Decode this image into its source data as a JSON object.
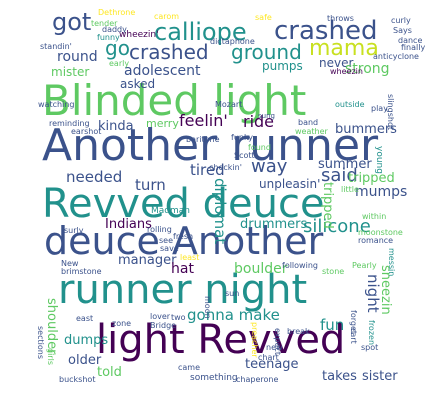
{
  "palette": {
    "purple": "#440154",
    "blue": "#3b528b",
    "teal": "#21918c",
    "green": "#5ec962",
    "yellow": "#fde725"
  },
  "words": [
    {
      "text": "Blinded light",
      "color": "#5ec962"
    },
    {
      "text": "Another runner",
      "color": "#3b528b"
    },
    {
      "text": "Revved deuce",
      "color": "#21918c"
    },
    {
      "text": "deuce Another",
      "color": "#3b528b"
    },
    {
      "text": "runner night",
      "color": "#21918c"
    },
    {
      "text": "light Revved",
      "color": "#440154"
    },
    {
      "text": "calliope",
      "color": "#21918c"
    },
    {
      "text": "crashed",
      "color": "#3b528b"
    },
    {
      "text": "got",
      "color": "#3b528b"
    },
    {
      "text": "go",
      "color": "#21918c"
    },
    {
      "text": "crashed",
      "color": "#3b528b"
    },
    {
      "text": "ground",
      "color": "#21918c"
    },
    {
      "text": "mama",
      "color": "#c8e020"
    },
    {
      "text": "pumps",
      "color": "#21918c"
    },
    {
      "text": "never",
      "color": "#3b528b"
    },
    {
      "text": "strong",
      "color": "#5ec962"
    },
    {
      "text": "round",
      "color": "#3b528b"
    },
    {
      "text": "mister",
      "color": "#5ec962"
    },
    {
      "text": "adolescent",
      "color": "#3b528b"
    },
    {
      "text": "asked",
      "color": "#3b528b"
    },
    {
      "text": "kinda",
      "color": "#3b528b"
    },
    {
      "text": "merry",
      "color": "#5ec962"
    },
    {
      "text": "feelin'",
      "color": "#440154"
    },
    {
      "text": "ride",
      "color": "#440154"
    },
    {
      "text": "bummers",
      "color": "#3b528b"
    },
    {
      "text": "way",
      "color": "#3b528b"
    },
    {
      "text": "summer",
      "color": "#3b528b"
    },
    {
      "text": "said",
      "color": "#3b528b"
    },
    {
      "text": "tripped",
      "color": "#5ec962"
    },
    {
      "text": "mumps",
      "color": "#3b528b"
    },
    {
      "text": "tired",
      "color": "#3b528b"
    },
    {
      "text": "needed",
      "color": "#3b528b"
    },
    {
      "text": "turn",
      "color": "#3b528b"
    },
    {
      "text": "diplomat",
      "color": "#21918c"
    },
    {
      "text": "unpleasin'",
      "color": "#3b528b"
    },
    {
      "text": "Indians",
      "color": "#440154"
    },
    {
      "text": "drummers",
      "color": "#21918c"
    },
    {
      "text": "silicone",
      "color": "#21918c"
    },
    {
      "text": "manager",
      "color": "#3b528b"
    },
    {
      "text": "hat",
      "color": "#440154"
    },
    {
      "text": "boulder",
      "color": "#5ec962"
    },
    {
      "text": "gonna make",
      "color": "#21918c"
    },
    {
      "text": "fun",
      "color": "#21918c"
    },
    {
      "text": "tripped",
      "color": "#5ec962"
    },
    {
      "text": "shoulder",
      "color": "#5ec962"
    },
    {
      "text": "dumps",
      "color": "#21918c"
    },
    {
      "text": "older",
      "color": "#3b528b"
    },
    {
      "text": "told",
      "color": "#5ec962"
    },
    {
      "text": "teenage",
      "color": "#3b528b"
    },
    {
      "text": "takes",
      "color": "#3b528b"
    },
    {
      "text": "sister",
      "color": "#3b528b"
    },
    {
      "text": "night",
      "color": "#3b528b"
    },
    {
      "text": "sneezin",
      "color": "#5ec962"
    },
    {
      "text": "something",
      "color": "#3b528b"
    },
    {
      "text": "Madman",
      "color": "#21918c"
    },
    {
      "text": "checkin'",
      "color": "#3b528b"
    },
    {
      "text": "Scott",
      "color": "#3b528b"
    },
    {
      "text": "spot",
      "color": "#3b528b"
    },
    {
      "text": "Dethrone",
      "color": "#fde725"
    },
    {
      "text": "tender",
      "color": "#5ec962"
    },
    {
      "text": "daddy",
      "color": "#3b528b"
    },
    {
      "text": "funny",
      "color": "#21918c"
    },
    {
      "text": "standin'",
      "color": "#3b528b"
    },
    {
      "text": "early",
      "color": "#5ec962"
    },
    {
      "text": "wheezin'",
      "color": "#440154"
    },
    {
      "text": "dictaphone",
      "color": "#3b528b"
    },
    {
      "text": "carom",
      "color": "#fde725"
    },
    {
      "text": "safe",
      "color": "#fde725"
    },
    {
      "text": "throws",
      "color": "#3b528b"
    },
    {
      "text": "curly",
      "color": "#3b528b"
    },
    {
      "text": "Says",
      "color": "#3b528b"
    },
    {
      "text": "dance",
      "color": "#3b528b"
    },
    {
      "text": "finally",
      "color": "#3b528b"
    },
    {
      "text": "anticyclone",
      "color": "#3b528b"
    },
    {
      "text": "wheezin",
      "color": "#440154"
    },
    {
      "text": "Mozart",
      "color": "#3b528b"
    },
    {
      "text": "outside",
      "color": "#21918c"
    },
    {
      "text": "play",
      "color": "#3b528b"
    },
    {
      "text": "sung",
      "color": "#3b528b"
    },
    {
      "text": "reminding",
      "color": "#3b528b"
    },
    {
      "text": "earshot",
      "color": "#3b528b"
    },
    {
      "text": "baritone",
      "color": "#3b528b"
    },
    {
      "text": "band",
      "color": "#3b528b"
    },
    {
      "text": "weather",
      "color": "#5ec962"
    },
    {
      "text": "funky",
      "color": "#3b528b"
    },
    {
      "text": "young",
      "color": "#21918c"
    },
    {
      "text": "little",
      "color": "#5ec962"
    },
    {
      "text": "romance",
      "color": "#3b528b"
    },
    {
      "text": "moonstone",
      "color": "#5ec962"
    },
    {
      "text": "within",
      "color": "#5ec962"
    },
    {
      "text": "messin",
      "color": "#21918c"
    },
    {
      "text": "fresh",
      "color": "#3b528b"
    },
    {
      "text": "rolling",
      "color": "#3b528b"
    },
    {
      "text": "see",
      "color": "#3b528b"
    },
    {
      "text": "save",
      "color": "#3b528b"
    },
    {
      "text": "least",
      "color": "#fde725"
    },
    {
      "text": "following",
      "color": "#3b528b"
    },
    {
      "text": "stone",
      "color": "#5ec962"
    },
    {
      "text": "Pearly",
      "color": "#5ec962"
    },
    {
      "text": "surly",
      "color": "#3b528b"
    },
    {
      "text": "New",
      "color": "#3b528b"
    },
    {
      "text": "brimstone",
      "color": "#3b528b"
    },
    {
      "text": "lover",
      "color": "#3b528b"
    },
    {
      "text": "two",
      "color": "#3b528b"
    },
    {
      "text": "zone",
      "color": "#3b528b"
    },
    {
      "text": "Bridge",
      "color": "#3b528b"
    },
    {
      "text": "preacher",
      "color": "#fde725"
    },
    {
      "text": "expect",
      "color": "#3b528b"
    },
    {
      "text": "break",
      "color": "#3b528b"
    },
    {
      "text": "forget",
      "color": "#3b528b"
    },
    {
      "text": "frozen",
      "color": "#21918c"
    },
    {
      "text": "cart",
      "color": "#3b528b"
    },
    {
      "text": "east",
      "color": "#3b528b"
    },
    {
      "text": "sections",
      "color": "#3b528b"
    },
    {
      "text": "girls",
      "color": "#5ec962"
    },
    {
      "text": "buckshot",
      "color": "#3b528b"
    },
    {
      "text": "came",
      "color": "#3b528b"
    },
    {
      "text": "new",
      "color": "#3b528b"
    },
    {
      "text": "chart",
      "color": "#3b528b"
    },
    {
      "text": "chaperone",
      "color": "#3b528b"
    },
    {
      "text": "sun",
      "color": "#3b528b"
    },
    {
      "text": "moon",
      "color": "#3b528b"
    },
    {
      "text": "found",
      "color": "#5ec962"
    },
    {
      "text": "slingshot",
      "color": "#3b528b"
    },
    {
      "text": "watching",
      "color": "#3b528b"
    }
  ]
}
